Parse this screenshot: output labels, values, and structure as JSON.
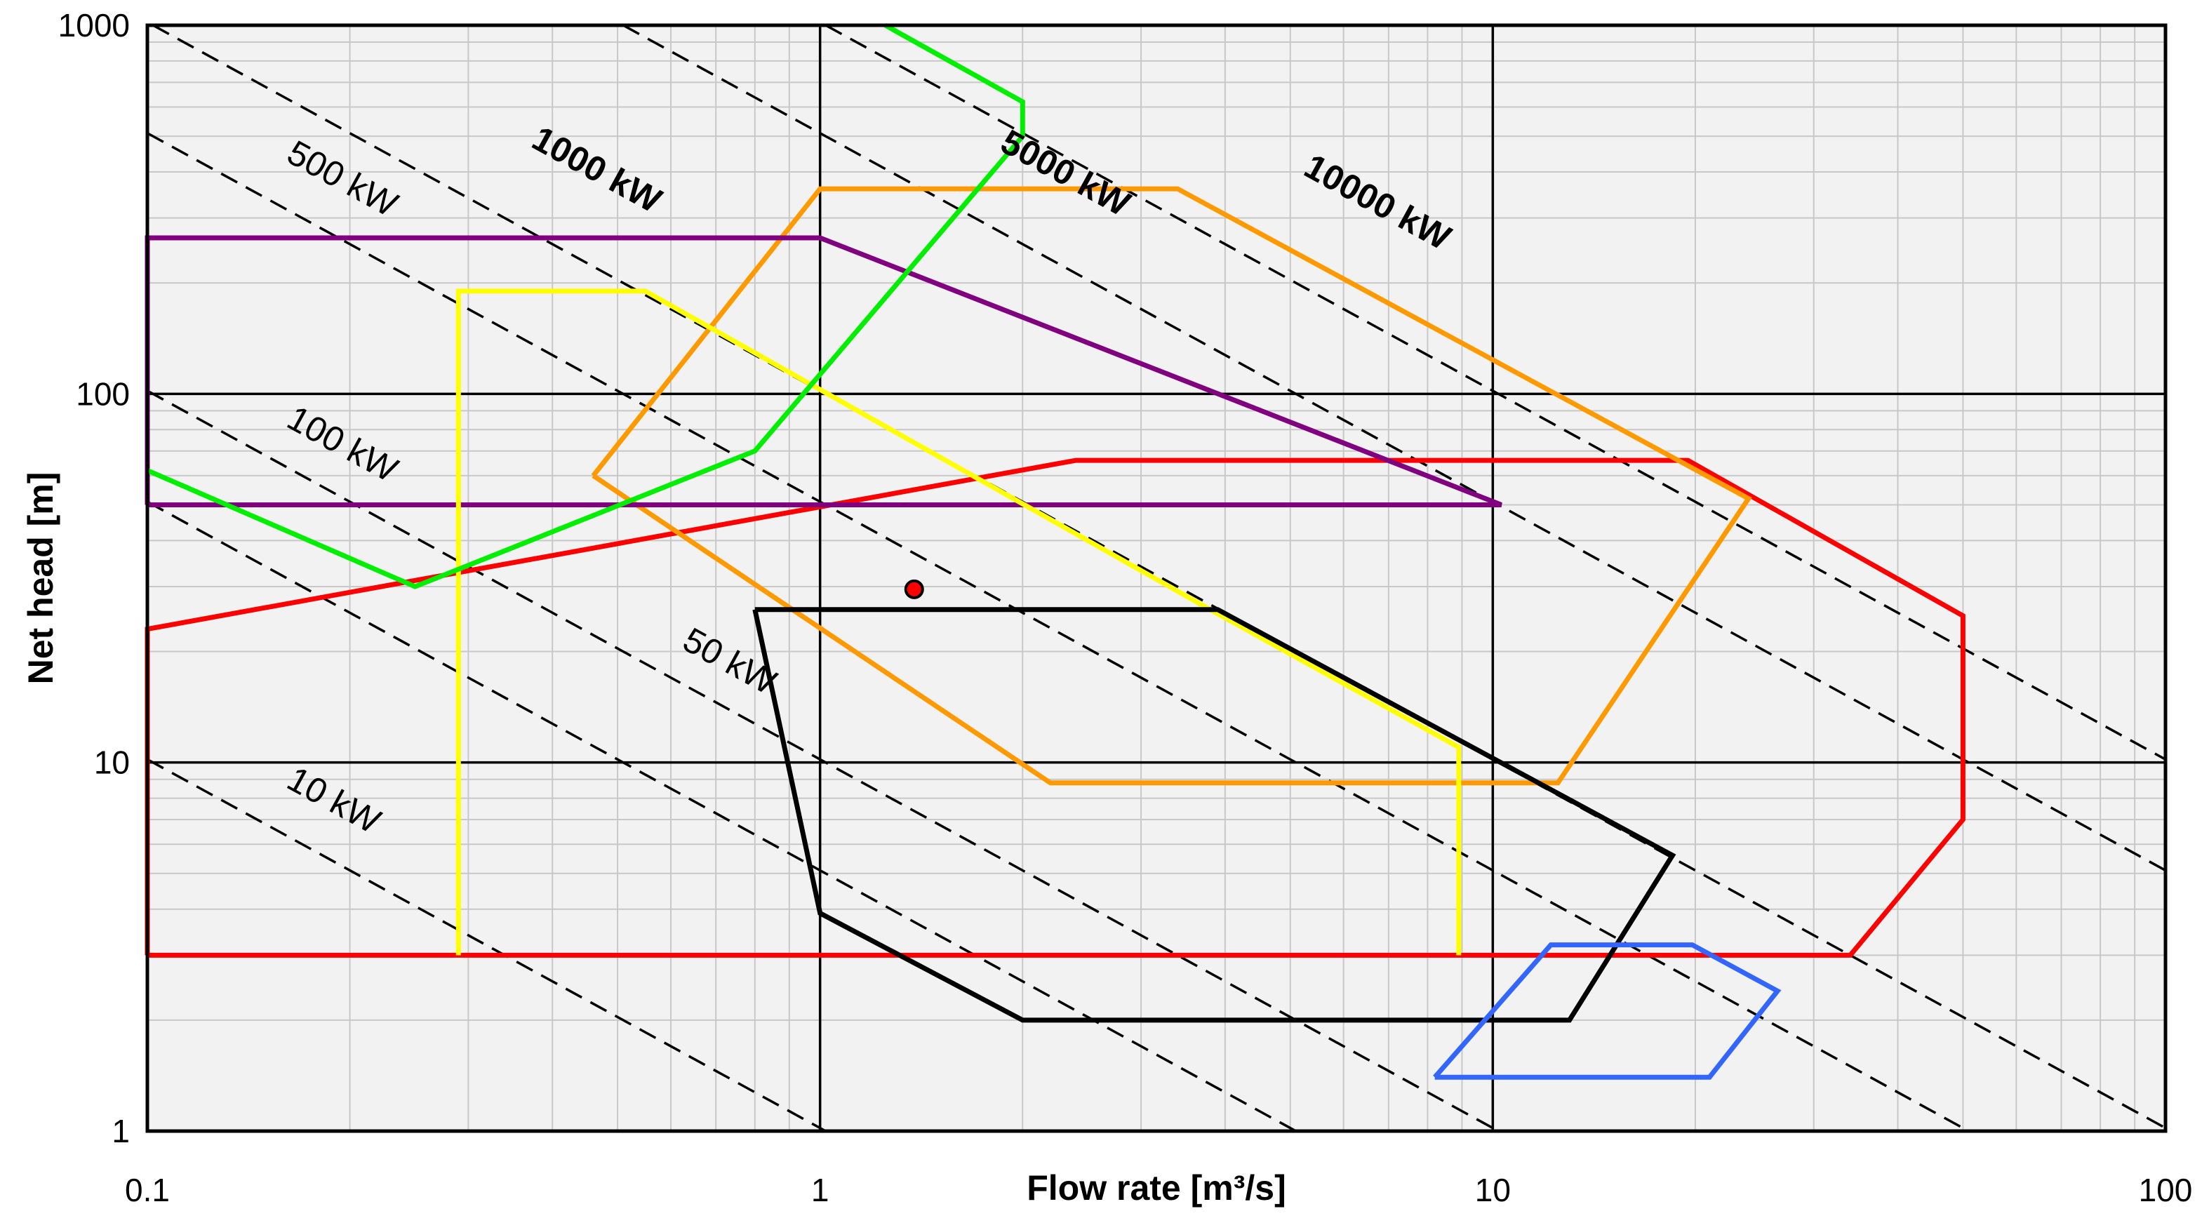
{
  "chart_data": {
    "type": "line",
    "xlabel": "Flow rate [m³/s]",
    "ylabel": "Net head [m]",
    "xscale": "log",
    "yscale": "log",
    "xlim": [
      0.1,
      100
    ],
    "ylim": [
      1,
      1000
    ],
    "grid": true,
    "x_ticks": [
      {
        "value": 0.1,
        "label": "0.1"
      },
      {
        "value": 1,
        "label": "1"
      },
      {
        "value": 10,
        "label": "10"
      },
      {
        "value": 100,
        "label": "100"
      }
    ],
    "y_ticks": [
      {
        "value": 1,
        "label": "1"
      },
      {
        "value": 10,
        "label": "10"
      },
      {
        "value": 100,
        "label": "100"
      },
      {
        "value": 1000,
        "label": "1000"
      }
    ],
    "power_lines": [
      {
        "kw": 10,
        "label": "10 kW",
        "bold": false,
        "label_x": 0.16,
        "label_y": 8.6
      },
      {
        "kw": 50,
        "label": "50 kW",
        "bold": false,
        "label_x": 0.62,
        "label_y": 20.5
      },
      {
        "kw": 100,
        "label": "100 kW",
        "bold": false,
        "label_x": 0.16,
        "label_y": 82
      },
      {
        "kw": 500,
        "label": "500 kW",
        "bold": false,
        "label_x": 0.16,
        "label_y": 430
      },
      {
        "kw": 1000,
        "label": "1000 kW",
        "bold": true,
        "label_x": 0.37,
        "label_y": 470
      },
      {
        "kw": 5000,
        "label": "5000 kW",
        "bold": true,
        "label_x": 1.84,
        "label_y": 460
      },
      {
        "kw": 10000,
        "label": "10000 kW",
        "bold": true,
        "label_x": 5.2,
        "label_y": 395
      }
    ],
    "series": [
      {
        "color": "#ff0000",
        "closed": true,
        "points": [
          [
            0.1,
            3
          ],
          [
            34,
            3
          ],
          [
            50,
            7
          ],
          [
            50,
            25
          ],
          [
            19.5,
            66
          ],
          [
            2.4,
            66
          ],
          [
            0.1,
            23
          ],
          [
            0.1,
            3
          ]
        ]
      },
      {
        "color": "#ff9900",
        "closed": true,
        "points": [
          [
            0.46,
            60
          ],
          [
            1,
            360
          ],
          [
            3.4,
            360
          ],
          [
            24,
            52
          ],
          [
            12.5,
            8.8
          ],
          [
            2.2,
            8.8
          ],
          [
            0.46,
            60
          ]
        ]
      },
      {
        "color": "#800080",
        "closed": true,
        "points": [
          [
            0.1,
            50
          ],
          [
            10.3,
            50
          ],
          [
            1,
            265
          ],
          [
            0.1,
            265
          ],
          [
            0.1,
            50
          ]
        ]
      },
      {
        "color": "#ffff00",
        "closed": false,
        "points": [
          [
            0.29,
            3
          ],
          [
            0.29,
            190
          ],
          [
            0.55,
            190
          ],
          [
            3.8,
            26
          ],
          [
            8.9,
            11
          ],
          [
            8.9,
            3
          ]
        ]
      },
      {
        "color": "#00ee00",
        "closed": false,
        "points": [
          [
            0.1,
            62
          ],
          [
            0.25,
            30
          ],
          [
            0.8,
            70
          ],
          [
            2,
            500
          ],
          [
            2,
            620
          ],
          [
            1.25,
            1000
          ]
        ]
      },
      {
        "color": "#000000",
        "closed": true,
        "points": [
          [
            0.8,
            26
          ],
          [
            3.9,
            26
          ],
          [
            18.5,
            5.6
          ],
          [
            13,
            2
          ],
          [
            2,
            2
          ],
          [
            1,
            3.9
          ],
          [
            0.8,
            26
          ]
        ]
      },
      {
        "color": "#3366ff",
        "closed": true,
        "points": [
          [
            8.2,
            1.4
          ],
          [
            12.2,
            3.2
          ],
          [
            19.8,
            3.2
          ],
          [
            26.5,
            2.4
          ],
          [
            21,
            1.4
          ],
          [
            8.2,
            1.4
          ]
        ]
      }
    ],
    "reference_point": {
      "x": 1.38,
      "y": 29.5,
      "color": "#ff0000"
    }
  }
}
